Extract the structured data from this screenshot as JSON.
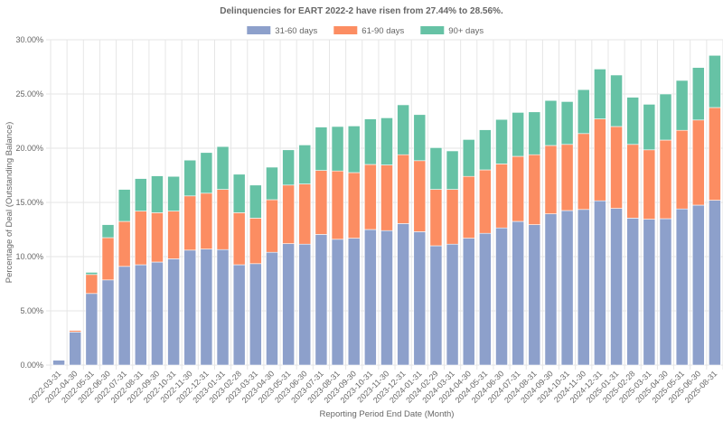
{
  "chart_data": {
    "type": "bar",
    "stacked": true,
    "title": "Delinquencies for EART 2022-2 have risen from 27.44% to 28.56%.",
    "xlabel": "Reporting Period End Date (Month)",
    "ylabel": "Percentage of Deal (Outstanding Balance)",
    "ylim": [
      0,
      30
    ],
    "yticks": [
      "0.00%",
      "5.00%",
      "10.00%",
      "15.00%",
      "20.00%",
      "25.00%",
      "30.00%"
    ],
    "ytick_values": [
      0,
      5,
      10,
      15,
      20,
      25,
      30
    ],
    "grid": true,
    "legend_position": "top-center",
    "categories": [
      "2022-03-31",
      "2022-04-30",
      "2022-05-31",
      "2022-06-30",
      "2022-07-31",
      "2022-08-31",
      "2022-09-30",
      "2022-10-31",
      "2022-11-30",
      "2022-12-31",
      "2023-01-31",
      "2023-02-28",
      "2023-03-31",
      "2023-04-30",
      "2023-05-31",
      "2023-06-30",
      "2023-07-31",
      "2023-08-31",
      "2023-09-30",
      "2023-10-31",
      "2023-11-30",
      "2023-12-31",
      "2024-01-31",
      "2024-02-29",
      "2024-03-31",
      "2024-04-30",
      "2024-05-31",
      "2024-06-30",
      "2024-07-31",
      "2024-08-31",
      "2024-09-30",
      "2024-10-31",
      "2024-11-30",
      "2024-12-31",
      "2025-01-31",
      "2025-02-28",
      "2025-03-31",
      "2025-04-30",
      "2025-05-31",
      "2025-06-30",
      "2025-08-31"
    ],
    "series": [
      {
        "name": "31-60 days",
        "color": "#8da0cb",
        "values": [
          0.45,
          3.05,
          6.6,
          7.85,
          9.1,
          9.25,
          9.5,
          9.8,
          10.6,
          10.7,
          10.65,
          9.25,
          9.35,
          10.4,
          11.2,
          11.15,
          12.05,
          11.6,
          11.7,
          12.5,
          12.4,
          13.05,
          12.3,
          11.0,
          11.15,
          11.7,
          12.15,
          12.65,
          13.25,
          12.95,
          13.95,
          14.25,
          14.35,
          15.15,
          14.45,
          13.55,
          13.45,
          13.5,
          14.4,
          14.75,
          15.2
        ]
      },
      {
        "name": "61-90 days",
        "color": "#fc8d62",
        "values": [
          0.0,
          0.15,
          1.75,
          3.9,
          4.15,
          4.95,
          4.55,
          4.4,
          5.0,
          5.15,
          5.55,
          4.8,
          4.2,
          4.85,
          5.4,
          5.55,
          5.9,
          6.3,
          6.05,
          6.0,
          6.05,
          6.35,
          6.55,
          5.2,
          5.05,
          5.7,
          5.85,
          5.9,
          6.0,
          6.45,
          6.3,
          6.1,
          7.0,
          7.55,
          7.55,
          6.8,
          6.4,
          7.25,
          7.25,
          7.85,
          8.55
        ]
      },
      {
        "name": "90+ days",
        "color": "#66c2a5",
        "values": [
          0.0,
          0.05,
          0.2,
          1.2,
          2.95,
          3.0,
          3.4,
          3.2,
          3.3,
          3.75,
          3.95,
          3.55,
          3.05,
          3.0,
          3.25,
          3.6,
          4.0,
          4.1,
          4.3,
          4.2,
          4.35,
          4.6,
          4.25,
          3.85,
          3.55,
          3.4,
          3.7,
          4.1,
          4.05,
          3.95,
          4.15,
          3.95,
          4.05,
          4.6,
          4.75,
          4.35,
          4.2,
          4.25,
          4.6,
          4.84,
          4.81
        ]
      }
    ]
  }
}
